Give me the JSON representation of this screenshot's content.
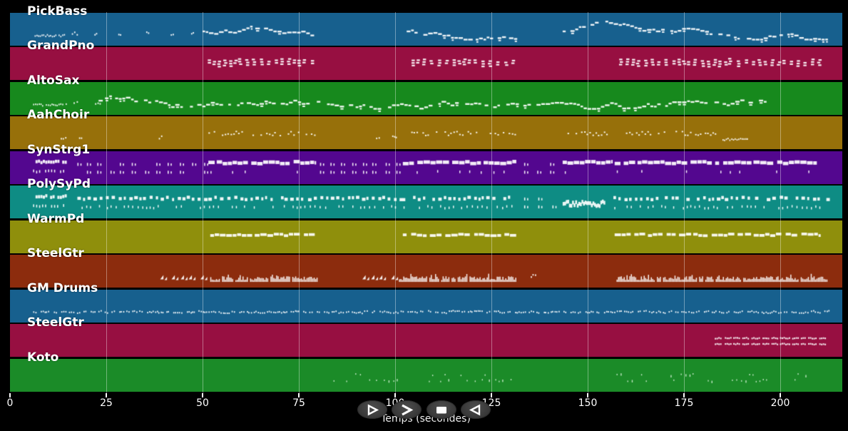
{
  "figure": {
    "background": "#000000",
    "note_color": "#ffffff",
    "gridline_color": "rgba(255,255,255,0.38)"
  },
  "axis": {
    "label": "Temps (secondes)",
    "ticks": [
      0,
      25,
      50,
      75,
      100,
      125,
      150,
      175,
      200
    ],
    "range_seconds": [
      0,
      216
    ]
  },
  "controls": {
    "buttons": [
      {
        "name": "play-button",
        "icon": "play-icon",
        "glyph": "outlined right triangle"
      },
      {
        "name": "fast-forward-button",
        "icon": "fast-forward-icon",
        "glyph": "right chevron"
      },
      {
        "name": "stop-button",
        "icon": "stop-icon",
        "glyph": "filled rectangle"
      },
      {
        "name": "rewind-button",
        "icon": "rewind-icon",
        "glyph": "outlined left triangle"
      }
    ]
  },
  "chart_data": {
    "type": "midi-track-timeline",
    "title": "",
    "xlabel": "Temps (secondes)",
    "x_range_seconds": [
      0,
      216
    ],
    "x_ticks": [
      0,
      25,
      50,
      75,
      100,
      125,
      150,
      175,
      200
    ],
    "grid": "vertical white lines at each 25 s tick",
    "legend_position": "none",
    "tracks": [
      {
        "name": "PickBass",
        "color": "#17608e",
        "clusters": [
          {
            "start": 6,
            "end": 14.5,
            "style": "dotrun"
          },
          {
            "start": 16,
            "end": 49,
            "style": "sparse"
          },
          {
            "start": 50,
            "end": 79,
            "style": "melody"
          },
          {
            "start": 103,
            "end": 131.5,
            "style": "melody"
          },
          {
            "start": 143.5,
            "end": 212,
            "style": "melody"
          }
        ]
      },
      {
        "name": "GrandPno",
        "color": "#970f41",
        "clusters": [
          {
            "start": 51,
            "end": 79,
            "style": "chords"
          },
          {
            "start": 104,
            "end": 131.5,
            "style": "chords"
          },
          {
            "start": 158,
            "end": 210,
            "style": "chords"
          }
        ]
      },
      {
        "name": "AltoSax",
        "color": "#17891d",
        "clusters": [
          {
            "start": 6,
            "end": 14.5,
            "style": "dotrun"
          },
          {
            "start": 16.5,
            "end": 22,
            "style": "sparse"
          },
          {
            "start": 23,
            "end": 196.5,
            "style": "melody"
          }
        ]
      },
      {
        "name": "AahChoir",
        "color": "#97700a",
        "clusters": [
          {
            "start": 13,
            "end": 22,
            "style": "sparse"
          },
          {
            "start": 38.5,
            "end": 41,
            "style": "sparse"
          },
          {
            "start": 50,
            "end": 79,
            "style": "choir"
          },
          {
            "start": 95,
            "end": 100,
            "style": "sparse"
          },
          {
            "start": 101,
            "end": 131.5,
            "style": "choir"
          },
          {
            "start": 143.5,
            "end": 184,
            "style": "choir"
          },
          {
            "start": 185,
            "end": 191.5,
            "style": "dotrun"
          }
        ]
      },
      {
        "name": "SynStrg1",
        "color": "#53078f",
        "clusters": [
          {
            "start": 6,
            "end": 14.5,
            "style": "blocks2"
          },
          {
            "start": 17.5,
            "end": 51,
            "style": "ticks2"
          },
          {
            "start": 51.5,
            "end": 79.5,
            "style": "barticks"
          },
          {
            "start": 80.5,
            "end": 101.5,
            "style": "ticks2"
          },
          {
            "start": 102,
            "end": 131.5,
            "style": "barticks"
          },
          {
            "start": 133.5,
            "end": 143,
            "style": "ticks2"
          },
          {
            "start": 143.5,
            "end": 156.5,
            "style": "barticks"
          },
          {
            "start": 157,
            "end": 209.5,
            "style": "barticks"
          }
        ]
      },
      {
        "name": "PolySyPd",
        "color": "#0e8c84",
        "clusters": [
          {
            "start": 6,
            "end": 14.5,
            "style": "blocks2"
          },
          {
            "start": 17.5,
            "end": 51,
            "style": "tealrows"
          },
          {
            "start": 51.5,
            "end": 101.5,
            "style": "tealrows"
          },
          {
            "start": 102,
            "end": 131.5,
            "style": "tealrows"
          },
          {
            "start": 133.5,
            "end": 143,
            "style": "ticks2"
          },
          {
            "start": 143.5,
            "end": 154.5,
            "style": "denseblock"
          },
          {
            "start": 155.5,
            "end": 212,
            "style": "tealrows"
          }
        ]
      },
      {
        "name": "WarmPd",
        "color": "#8f8f0c",
        "clusters": [
          {
            "start": 52,
            "end": 79.5,
            "style": "bar"
          },
          {
            "start": 102,
            "end": 131.5,
            "style": "bar"
          },
          {
            "start": 157,
            "end": 210.5,
            "style": "bar"
          }
        ]
      },
      {
        "name": "SteelGtr",
        "color": "#8c2c0d",
        "clusters": [
          {
            "start": 39,
            "end": 51.5,
            "style": "triangles"
          },
          {
            "start": 52,
            "end": 80,
            "style": "wave"
          },
          {
            "start": 91.5,
            "end": 100.5,
            "style": "triangles"
          },
          {
            "start": 101,
            "end": 131.5,
            "style": "wave"
          },
          {
            "start": 135,
            "end": 137.5,
            "style": "sparse"
          },
          {
            "start": 157.5,
            "end": 212,
            "style": "wave"
          }
        ]
      },
      {
        "name": "GM Drums",
        "color": "#17608e",
        "clusters": [
          {
            "start": 6,
            "end": 212,
            "style": "drums"
          }
        ]
      },
      {
        "name": "SteelGtr",
        "color": "#970f41",
        "clusters": [
          {
            "start": 183,
            "end": 212,
            "style": "colon2"
          }
        ]
      },
      {
        "name": "Koto",
        "color": "#1b8b28",
        "clusters": [
          {
            "start": 84,
            "end": 130,
            "style": "kotodots"
          },
          {
            "start": 157.5,
            "end": 207.5,
            "style": "kotodots"
          }
        ]
      }
    ]
  }
}
